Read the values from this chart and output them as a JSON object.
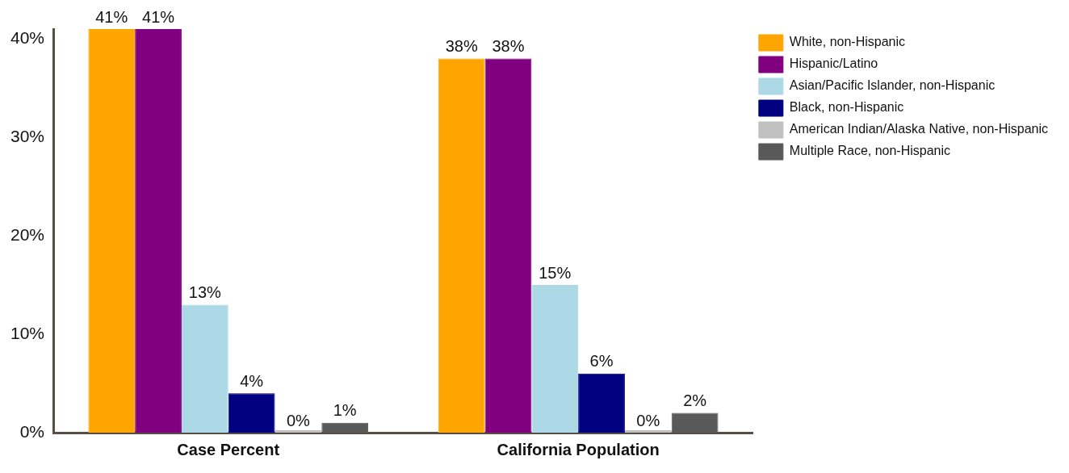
{
  "chart_data": {
    "type": "bar",
    "categories": [
      "Case Percent",
      "California Population"
    ],
    "series": [
      {
        "name": "White, non-Hispanic",
        "color": "#ffa500",
        "values": [
          41,
          38
        ],
        "value_labels": [
          "41%",
          "38%"
        ]
      },
      {
        "name": "Hispanic/Latino",
        "color": "#800080",
        "values": [
          41,
          38
        ],
        "value_labels": [
          "41%",
          "38%"
        ]
      },
      {
        "name": "Asian/Pacific Islander, non-Hispanic",
        "color": "#add8e6",
        "values": [
          13,
          15
        ],
        "value_labels": [
          "13%",
          "15%"
        ]
      },
      {
        "name": "Black, non-Hispanic",
        "color": "#000080",
        "values": [
          4,
          6
        ],
        "value_labels": [
          "4%",
          "6%"
        ]
      },
      {
        "name": "American Indian/Alaska Native, non-Hispanic",
        "color": "#c0c0c0",
        "values": [
          0,
          0
        ],
        "value_labels": [
          "0%",
          "0%"
        ]
      },
      {
        "name": "Multiple Race, non-Hispanic",
        "color": "#595959",
        "values": [
          1,
          2
        ],
        "value_labels": [
          "1%",
          "2%"
        ]
      }
    ],
    "ylim": [
      0,
      41
    ],
    "yticks": [
      {
        "value": 0,
        "label": "0%"
      },
      {
        "value": 10,
        "label": "10%"
      },
      {
        "value": 20,
        "label": "20%"
      },
      {
        "value": 30,
        "label": "30%"
      },
      {
        "value": 40,
        "label": "40%"
      }
    ],
    "grid": false,
    "legend": "top right"
  }
}
